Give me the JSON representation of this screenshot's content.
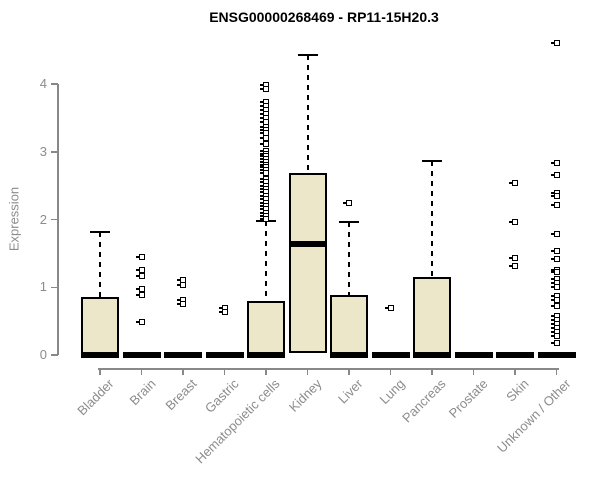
{
  "title": "ENSG00000268469 - RP11-15H20.3",
  "chart_data": {
    "type": "boxplot",
    "title": "ENSG00000268469 - RP11-15H20.3",
    "xlabel": "",
    "ylabel": "Expression",
    "ylim": [
      0,
      4.7
    ],
    "yticks": [
      0,
      1,
      2,
      3,
      4
    ],
    "grid": false,
    "legend": "none",
    "box_fill_color": "#EDE7C9",
    "box_border_color": "#000000",
    "median_color": "#000000",
    "axis_color": "#888888",
    "label_color": "#8c8c8c",
    "categories": [
      "Bladder",
      "Brain",
      "Breast",
      "Gastric",
      "Hematopoietic cells",
      "Kidney",
      "Liver",
      "Lung",
      "Pancreas",
      "Prostate",
      "Skin",
      "Unknown / Other"
    ],
    "series": [
      {
        "category": "Bladder",
        "whisker_low": 0,
        "q1": 0,
        "median": 0,
        "q3": 0.85,
        "whisker_high": 1.82,
        "outliers": []
      },
      {
        "category": "Brain",
        "whisker_low": 0,
        "q1": 0,
        "median": 0,
        "q3": 0,
        "whisker_high": 0,
        "outliers": [
          1.45,
          1.25,
          1.17,
          0.97,
          0.88,
          0.48
        ]
      },
      {
        "category": "Breast",
        "whisker_low": 0,
        "q1": 0,
        "median": 0,
        "q3": 0,
        "whisker_high": 0,
        "outliers": [
          1.11,
          1.03,
          0.81,
          0.76
        ]
      },
      {
        "category": "Gastric",
        "whisker_low": 0,
        "q1": 0,
        "median": 0,
        "q3": 0,
        "whisker_high": 0,
        "outliers": [
          0.69,
          0.64
        ]
      },
      {
        "category": "Hematopoietic cells",
        "whisker_low": 0,
        "q1": 0,
        "median": 0,
        "q3": 0.79,
        "whisker_high": 1.98,
        "outliers": [
          3.99,
          3.93,
          3.74,
          3.68,
          3.61,
          3.56,
          3.5,
          3.44,
          3.37,
          3.32,
          3.27,
          3.21,
          3.12,
          3.01,
          2.97,
          2.93,
          2.89,
          2.85,
          2.81,
          2.77,
          2.73,
          2.69,
          2.6,
          2.55,
          2.5,
          2.45,
          2.4,
          2.35,
          2.3,
          2.25,
          2.2,
          2.15,
          2.1,
          2.05,
          2.01
        ]
      },
      {
        "category": "Kidney",
        "whisker_low": 0.03,
        "q1": 0.03,
        "median": 1.64,
        "q3": 2.68,
        "whisker_high": 4.43,
        "outliers": []
      },
      {
        "category": "Liver",
        "whisker_low": 0,
        "q1": 0,
        "median": 0,
        "q3": 0.88,
        "whisker_high": 1.96,
        "outliers": [
          2.24
        ]
      },
      {
        "category": "Lung",
        "whisker_low": 0,
        "q1": 0,
        "median": 0,
        "q3": 0,
        "whisker_high": 0,
        "outliers": [
          0.69
        ]
      },
      {
        "category": "Pancreas",
        "whisker_low": 0,
        "q1": 0,
        "median": 0,
        "q3": 1.15,
        "whisker_high": 2.86,
        "outliers": []
      },
      {
        "category": "Prostate",
        "whisker_low": 0,
        "q1": 0,
        "median": 0,
        "q3": 0,
        "whisker_high": 0,
        "outliers": []
      },
      {
        "category": "Skin",
        "whisker_low": 0,
        "q1": 0,
        "median": 0,
        "q3": 0,
        "whisker_high": 0,
        "outliers": [
          2.54,
          1.97,
          1.43,
          1.31
        ]
      },
      {
        "category": "Unknown / Other",
        "whisker_low": 0,
        "q1": 0,
        "median": 0,
        "q3": 0,
        "whisker_high": 0,
        "outliers": [
          4.6,
          2.84,
          2.66,
          2.39,
          2.35,
          2.22,
          1.79,
          1.53,
          1.42,
          1.26,
          1.22,
          1.12,
          1.06,
          1.0,
          0.87,
          0.81,
          0.72,
          0.58,
          0.52,
          0.46,
          0.4,
          0.34,
          0.28,
          0.18
        ]
      }
    ]
  }
}
